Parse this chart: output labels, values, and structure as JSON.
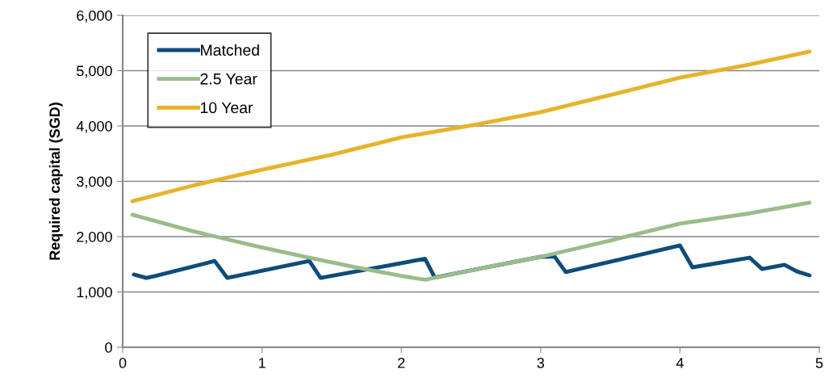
{
  "chart_data": {
    "type": "line",
    "ylabel": "Required capital (SGD)",
    "xlim": [
      0,
      5
    ],
    "xticks": [
      0,
      1,
      2,
      3,
      4,
      5
    ],
    "ylim": [
      0,
      6000
    ],
    "yticks": [
      {
        "value": 0,
        "label": "0"
      },
      {
        "value": 1000,
        "label": "1,000"
      },
      {
        "value": 2000,
        "label": "2,000"
      },
      {
        "value": 3000,
        "label": "3,000"
      },
      {
        "value": 4000,
        "label": "4,000"
      },
      {
        "value": 5000,
        "label": "5,000"
      },
      {
        "value": 6000,
        "label": "6,000"
      }
    ],
    "grid": "y",
    "legend": "top left",
    "marker": "none",
    "line_style": "solid",
    "series": [
      {
        "name": "Matched",
        "color": "#0f4c7a",
        "x": [
          0.08,
          0.17,
          0.23,
          0.66,
          0.75,
          1.34,
          1.42,
          2.17,
          2.24,
          2.6,
          3.0,
          3.1,
          3.18,
          4.0,
          4.09,
          4.5,
          4.59,
          4.75,
          4.84,
          4.93
        ],
        "values": [
          1315,
          1255,
          1285,
          1560,
          1255,
          1560,
          1255,
          1600,
          1260,
          1440,
          1635,
          1640,
          1360,
          1840,
          1445,
          1620,
          1415,
          1490,
          1370,
          1300
        ]
      },
      {
        "name": "2.5 Year",
        "color": "#9bbb8b",
        "x": [
          0.07,
          0.5,
          0.96,
          1.3,
          1.64,
          2.0,
          2.17,
          2.6,
          3.0,
          3.5,
          4.0,
          4.5,
          4.93
        ],
        "values": [
          2395,
          2100,
          1825,
          1640,
          1460,
          1290,
          1220,
          1440,
          1635,
          1930,
          2235,
          2420,
          2615
        ]
      },
      {
        "name": "10 Year",
        "color": "#e6b32a",
        "x": [
          0.07,
          0.5,
          1.0,
          1.5,
          2.0,
          2.5,
          3.0,
          3.5,
          4.0,
          4.5,
          4.93
        ],
        "values": [
          2640,
          2920,
          3210,
          3480,
          3795,
          4010,
          4250,
          4560,
          4875,
          5110,
          5345
        ]
      }
    ]
  }
}
